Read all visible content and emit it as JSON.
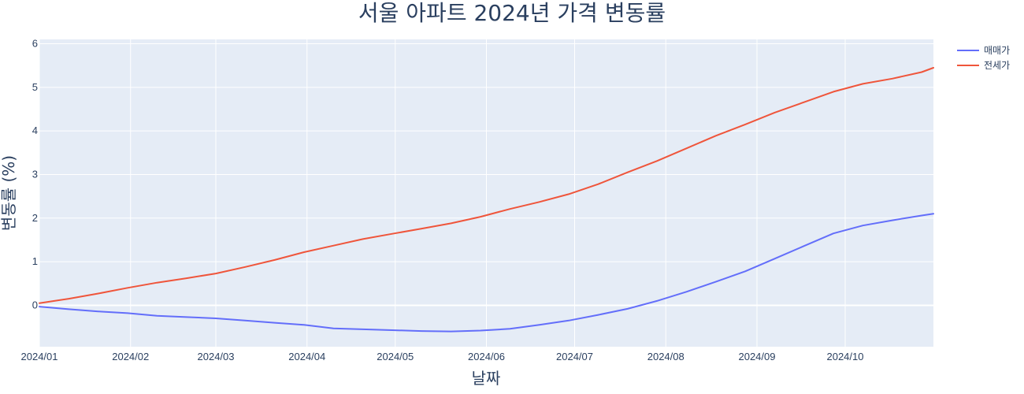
{
  "chart_data": {
    "type": "line",
    "title": "서울 아파트 2024년 가격 변동률",
    "xlabel": "날짜",
    "ylabel": "변동률 (%)",
    "x_ticks": [
      "2024/01",
      "2024/02",
      "2024/03",
      "2024/04",
      "2024/05",
      "2024/06",
      "2024/07",
      "2024/08",
      "2024/09",
      "2024/10"
    ],
    "y_ticks": [
      "0",
      "1",
      "2",
      "3",
      "4",
      "5",
      "6"
    ],
    "xlim": [
      "2024-01-01",
      "2024-10-31"
    ],
    "ylim": [
      -0.95,
      6.1
    ],
    "grid": true,
    "legend_position": "top-right",
    "x": [
      "2024-01-01",
      "2024-01-11",
      "2024-01-21",
      "2024-01-31",
      "2024-02-10",
      "2024-02-20",
      "2024-03-01",
      "2024-03-11",
      "2024-03-21",
      "2024-03-31",
      "2024-04-10",
      "2024-04-20",
      "2024-04-30",
      "2024-05-10",
      "2024-05-20",
      "2024-05-30",
      "2024-06-09",
      "2024-06-19",
      "2024-06-29",
      "2024-07-09",
      "2024-07-19",
      "2024-07-29",
      "2024-08-08",
      "2024-08-18",
      "2024-08-28",
      "2024-09-07",
      "2024-09-17",
      "2024-09-27",
      "2024-10-07",
      "2024-10-17",
      "2024-10-27",
      "2024-10-31"
    ],
    "series": [
      {
        "name": "매매가",
        "color": "#636efa",
        "values": [
          -0.03,
          -0.09,
          -0.14,
          -0.18,
          -0.24,
          -0.27,
          -0.3,
          -0.35,
          -0.4,
          -0.45,
          -0.53,
          -0.55,
          -0.57,
          -0.59,
          -0.6,
          -0.58,
          -0.54,
          -0.45,
          -0.35,
          -0.22,
          -0.08,
          0.1,
          0.31,
          0.54,
          0.78,
          1.07,
          1.36,
          1.65,
          1.83,
          1.95,
          2.06,
          2.1
        ]
      },
      {
        "name": "전세가",
        "color": "#ef553b",
        "values": [
          0.05,
          0.15,
          0.27,
          0.4,
          0.52,
          0.62,
          0.73,
          0.88,
          1.04,
          1.22,
          1.37,
          1.52,
          1.64,
          1.76,
          1.88,
          2.03,
          2.21,
          2.37,
          2.55,
          2.78,
          3.05,
          3.31,
          3.6,
          3.89,
          4.15,
          4.42,
          4.66,
          4.9,
          5.08,
          5.2,
          5.35,
          5.45
        ]
      }
    ]
  }
}
